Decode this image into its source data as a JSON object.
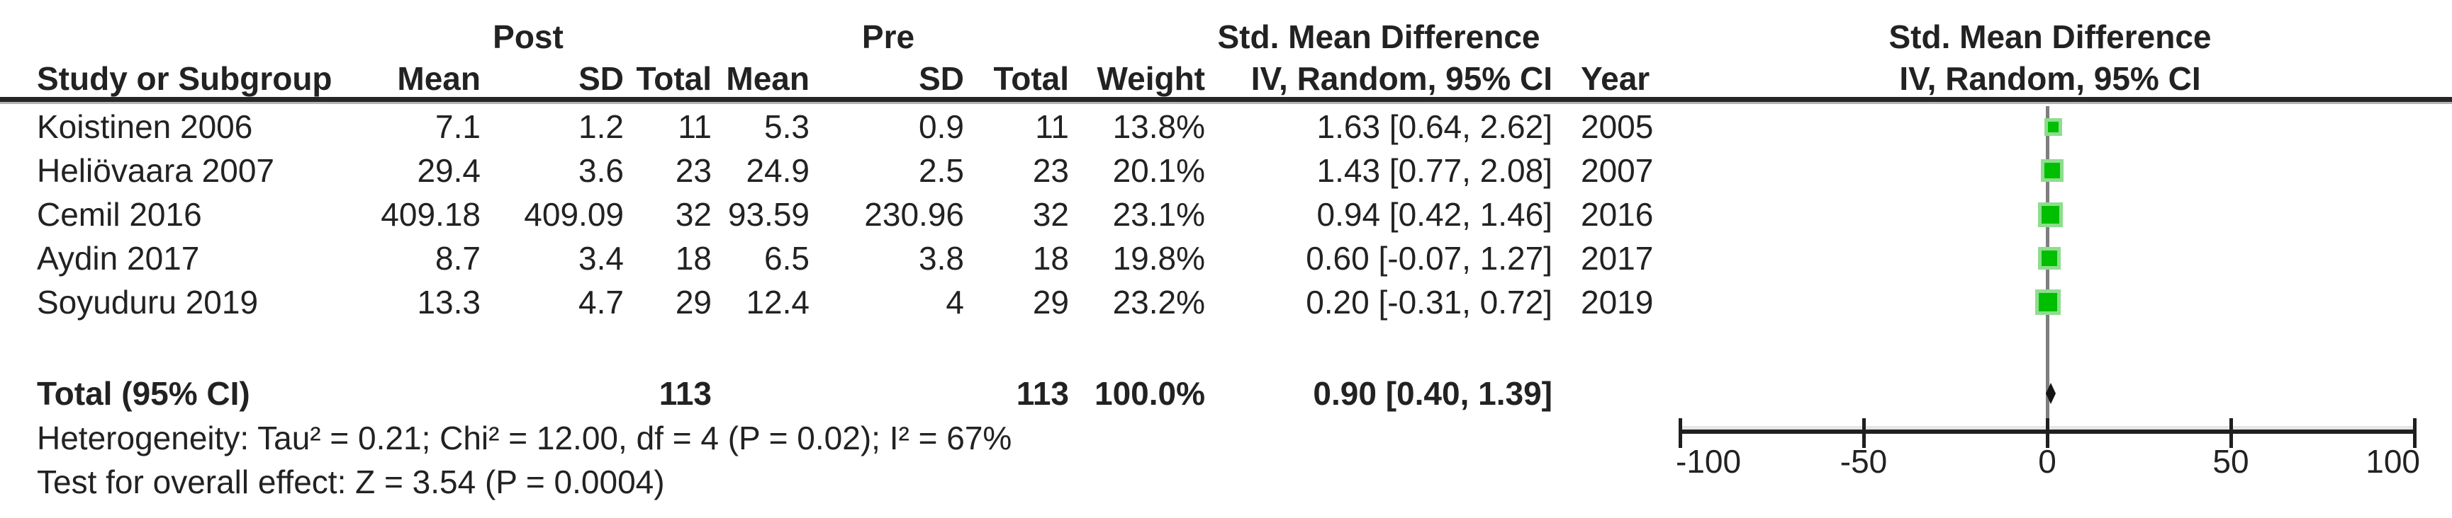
{
  "table": {
    "group_headers": {
      "post": "Post",
      "pre": "Pre",
      "smd": "Std. Mean Difference"
    },
    "column_headers": {
      "study": "Study or Subgroup",
      "mean": "Mean",
      "sd": "SD",
      "total": "Total",
      "weight": "Weight",
      "iv_random": "IV, Random, 95% CI",
      "year": "Year"
    },
    "rows": [
      {
        "study": "Koistinen 2006",
        "post_mean": "7.1",
        "post_sd": "1.2",
        "post_total": "11",
        "pre_mean": "5.3",
        "pre_sd": "0.9",
        "pre_total": "11",
        "weight": "13.8%",
        "smd_ci": "1.63 [0.64, 2.62]",
        "year": "2005"
      },
      {
        "study": "Heliövaara 2007",
        "post_mean": "29.4",
        "post_sd": "3.6",
        "post_total": "23",
        "pre_mean": "24.9",
        "pre_sd": "2.5",
        "pre_total": "23",
        "weight": "20.1%",
        "smd_ci": "1.43 [0.77, 2.08]",
        "year": "2007"
      },
      {
        "study": "Cemil 2016",
        "post_mean": "409.18",
        "post_sd": "409.09",
        "post_total": "32",
        "pre_mean": "93.59",
        "pre_sd": "230.96",
        "pre_total": "32",
        "weight": "23.1%",
        "smd_ci": "0.94 [0.42, 1.46]",
        "year": "2016"
      },
      {
        "study": "Aydin 2017",
        "post_mean": "8.7",
        "post_sd": "3.4",
        "post_total": "18",
        "pre_mean": "6.5",
        "pre_sd": "3.8",
        "pre_total": "18",
        "weight": "19.8%",
        "smd_ci": "0.60 [-0.07, 1.27]",
        "year": "2017"
      },
      {
        "study": "Soyuduru 2019",
        "post_mean": "13.3",
        "post_sd": "4.7",
        "post_total": "29",
        "pre_mean": "12.4",
        "pre_sd": "4",
        "pre_total": "29",
        "weight": "23.2%",
        "smd_ci": "0.20 [-0.31, 0.72]",
        "year": "2019"
      }
    ],
    "total_row": {
      "label": "Total (95% CI)",
      "post_total": "113",
      "pre_total": "113",
      "weight": "100.0%",
      "smd_ci": "0.90 [0.40, 1.39]"
    },
    "footnotes": {
      "heterogeneity": "Heterogeneity: Tau² = 0.21; Chi² = 12.00, df = 4 (P = 0.02); I² = 67%",
      "overall_effect": "Test for overall effect: Z = 3.54 (P = 0.0004)"
    }
  },
  "plot": {
    "header_line1": "Std. Mean Difference",
    "header_line2": "IV, Random, 95% CI",
    "axis_tick_labels": [
      "-100",
      "-50",
      "0",
      "50",
      "100"
    ],
    "marker_color": "#00be00",
    "marker_halo_color": "#8edd8e",
    "zero_line_color": "#7e7e7e",
    "axis_color": "#1f1f1f"
  },
  "chart_data": {
    "type": "forest",
    "title": "Std. Mean Difference — IV, Random, 95% CI",
    "xlim": [
      -100,
      100
    ],
    "x_ticks": [
      -100,
      -50,
      0,
      50,
      100
    ],
    "grid": false,
    "studies": [
      {
        "name": "Koistinen 2006",
        "smd": 1.63,
        "ci_low": 0.64,
        "ci_high": 2.62,
        "weight_pct": 13.8,
        "year": 2005
      },
      {
        "name": "Heliövaara 2007",
        "smd": 1.43,
        "ci_low": 0.77,
        "ci_high": 2.08,
        "weight_pct": 20.1,
        "year": 2007
      },
      {
        "name": "Cemil 2016",
        "smd": 0.94,
        "ci_low": 0.42,
        "ci_high": 1.46,
        "weight_pct": 23.1,
        "year": 2016
      },
      {
        "name": "Aydin 2017",
        "smd": 0.6,
        "ci_low": -0.07,
        "ci_high": 1.27,
        "weight_pct": 19.8,
        "year": 2017
      },
      {
        "name": "Soyuduru 2019",
        "smd": 0.2,
        "ci_low": -0.31,
        "ci_high": 0.72,
        "weight_pct": 23.2,
        "year": 2019
      }
    ],
    "total": {
      "smd": 0.9,
      "ci_low": 0.4,
      "ci_high": 1.39,
      "total_post": 113,
      "total_pre": 113,
      "weight_pct": 100.0
    },
    "heterogeneity": {
      "tau2": 0.21,
      "chi2": 12.0,
      "df": 4,
      "p": 0.02,
      "i2_pct": 67
    },
    "overall_effect": {
      "z": 3.54,
      "p": 0.0004
    }
  }
}
